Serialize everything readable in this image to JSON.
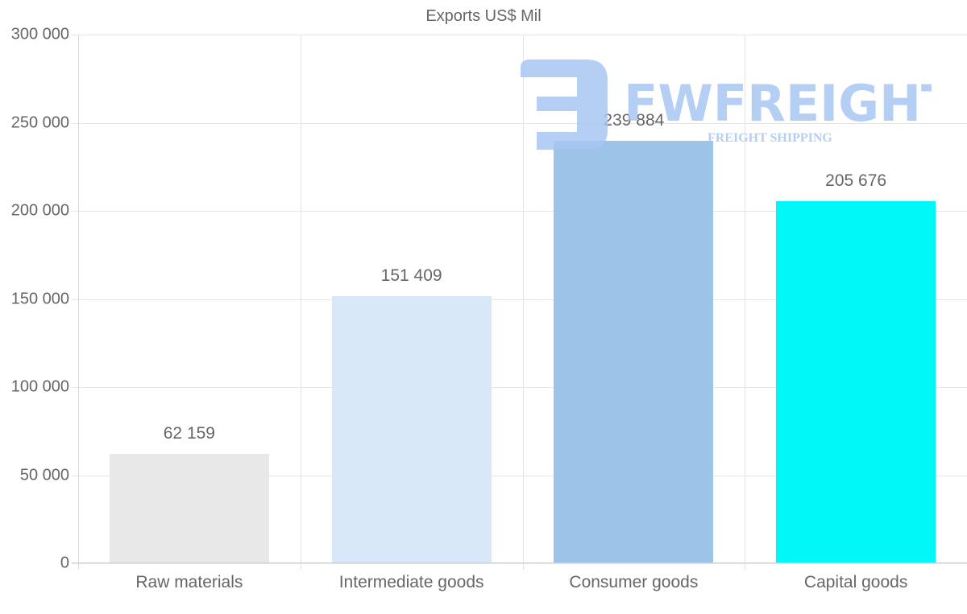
{
  "chart_data": {
    "type": "bar",
    "title": "Exports US$ Mil",
    "xlabel": "",
    "ylabel": "",
    "categories": [
      "Raw materials",
      "Intermediate goods",
      "Consumer goods",
      "Capital goods"
    ],
    "values": [
      62159,
      151409,
      239884,
      205676
    ],
    "value_labels": [
      "62 159",
      "151 409",
      "239 884",
      "205 676"
    ],
    "bar_colors": [
      "#e8e8e8",
      "#d8e8f9",
      "#9cc4e8",
      "#00f8f8"
    ],
    "ylim": [
      0,
      300000
    ],
    "yticks": [
      0,
      50000,
      100000,
      150000,
      200000,
      250000,
      300000
    ],
    "ytick_labels": [
      "0",
      "50 000",
      "100 000",
      "150 000",
      "200 000",
      "250 000",
      "300 000"
    ],
    "grid": true,
    "legend": null
  },
  "watermark": {
    "brand": "FWFREIGHT",
    "tagline": "FREIGHT SHIPPING",
    "color": "#a9c6f3"
  }
}
